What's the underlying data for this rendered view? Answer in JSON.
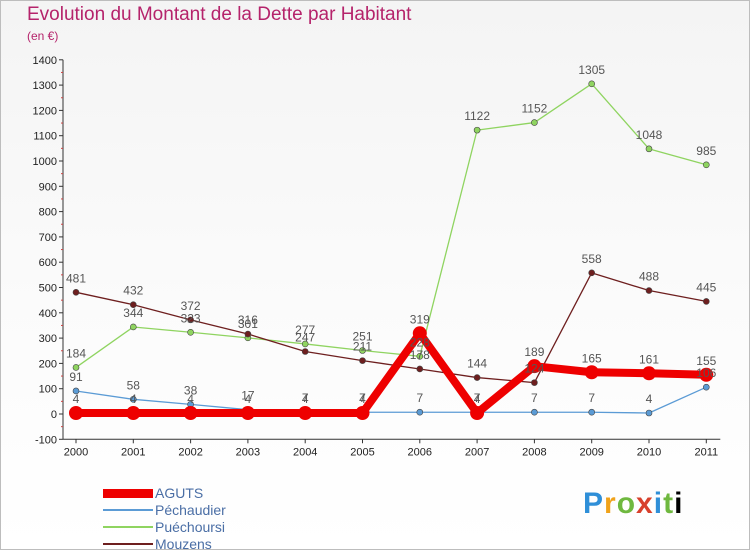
{
  "chart_data": {
    "type": "line",
    "title": "Evolution du Montant de la Dette par Habitant",
    "subtitle": "(en €)",
    "x": [
      "2000",
      "2001",
      "2002",
      "2003",
      "2004",
      "2005",
      "2006",
      "2007",
      "2008",
      "2009",
      "2010",
      "2011"
    ],
    "ylim": [
      -100,
      1400
    ],
    "yticks": [
      -100,
      0,
      100,
      200,
      300,
      400,
      500,
      600,
      700,
      800,
      900,
      1000,
      1100,
      1200,
      1300,
      1400
    ],
    "grid": false,
    "legend_position": "bottom-left",
    "series": [
      {
        "name": "AGUTS",
        "color": "#ee0000",
        "values": [
          4,
          4,
          4,
          4,
          4,
          4,
          319,
          4,
          189,
          165,
          161,
          155
        ]
      },
      {
        "name": "Péchaudier",
        "color": "#5b9bd5",
        "values": [
          91,
          58,
          38,
          17,
          7,
          7,
          7,
          7,
          7,
          7,
          4,
          106
        ]
      },
      {
        "name": "Puéchoursi",
        "color": "#8fd460",
        "values": [
          184,
          344,
          323,
          301,
          277,
          251,
          228,
          1122,
          1152,
          1305,
          1048,
          985
        ]
      },
      {
        "name": "Mouzens",
        "color": "#6e1f1f",
        "values": [
          481,
          432,
          372,
          316,
          247,
          211,
          178,
          144,
          124,
          558,
          488,
          445
        ]
      }
    ]
  },
  "brand": {
    "letters": [
      "P",
      "r",
      "o",
      "x",
      "i",
      "t",
      "i"
    ]
  }
}
